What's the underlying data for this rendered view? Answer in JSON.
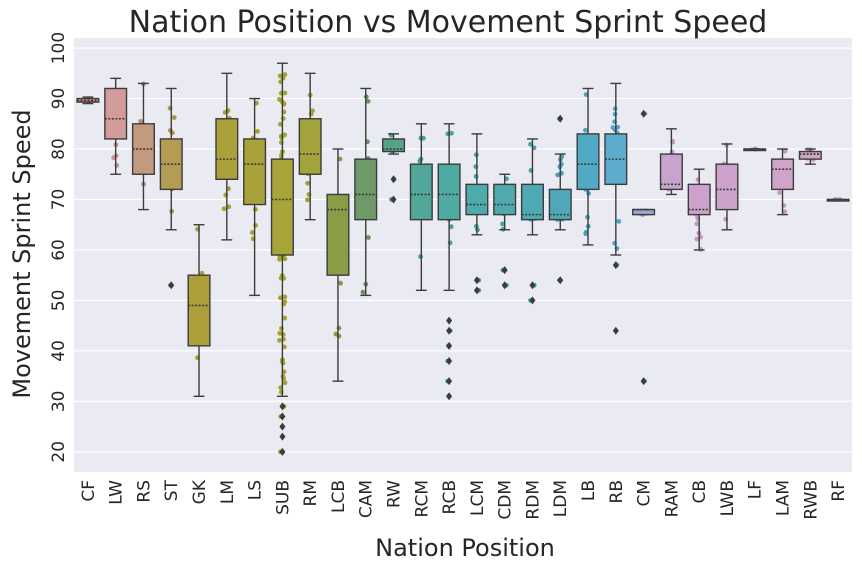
{
  "chart_data": {
    "type": "box",
    "title": "Nation Position vs Movement Sprint Speed",
    "xlabel": "Nation Position",
    "ylabel": "Movement Sprint Speed",
    "ylim": [
      16,
      102
    ],
    "yticks": [
      20,
      30,
      40,
      50,
      60,
      70,
      80,
      90,
      100
    ],
    "grid": true,
    "categories": [
      "CF",
      "LW",
      "RS",
      "ST",
      "GK",
      "LM",
      "LS",
      "SUB",
      "RM",
      "LCB",
      "CAM",
      "RW",
      "RCM",
      "RCB",
      "LCM",
      "CDM",
      "RDM",
      "LDM",
      "LB",
      "RB",
      "CM",
      "RAM",
      "CB",
      "LWB",
      "LF",
      "LAM",
      "RWB",
      "RF"
    ],
    "boxes": [
      {
        "position": "CF",
        "whislo": 89,
        "q1": 89.3,
        "med": 89.6,
        "q3": 90,
        "whishi": 90.3,
        "fliers": [],
        "box_color": "#db7f7f",
        "point_color": "#c2706f"
      },
      {
        "position": "LW",
        "whislo": 75,
        "q1": 82,
        "med": 86,
        "q3": 92,
        "whishi": 94,
        "fliers": [],
        "box_color": "#d39b9a",
        "point_color": "#c98b89"
      },
      {
        "position": "RS",
        "whislo": 68,
        "q1": 75,
        "med": 80,
        "q3": 85,
        "whishi": 93,
        "fliers": [],
        "box_color": "#c49a7e",
        "point_color": "#b58b6c"
      },
      {
        "position": "ST",
        "whislo": 64,
        "q1": 72,
        "med": 77,
        "q3": 82,
        "whishi": 92,
        "fliers": [
          53
        ],
        "box_color": "#b49c55",
        "point_color": "#a89040"
      },
      {
        "position": "GK",
        "whislo": 31,
        "q1": 41,
        "med": 49,
        "q3": 55,
        "whishi": 65,
        "fliers": [],
        "box_color": "#ac9f3a",
        "point_color": "#a69a2a"
      },
      {
        "position": "LM",
        "whislo": 62,
        "q1": 74,
        "med": 78,
        "q3": 86,
        "whishi": 95,
        "fliers": [],
        "box_color": "#aaa13a",
        "point_color": "#a59c2a"
      },
      {
        "position": "LS",
        "whislo": 51,
        "q1": 69,
        "med": 77,
        "q3": 82,
        "whishi": 90,
        "fliers": [],
        "box_color": "#a8a23a",
        "point_color": "#a39d2a"
      },
      {
        "position": "SUB",
        "whislo": 31,
        "q1": 59,
        "med": 70,
        "q3": 78,
        "whishi": 97,
        "fliers": [
          29,
          27,
          25,
          23,
          20
        ],
        "box_color": "#a7a43a",
        "point_color": "#a29f2a"
      },
      {
        "position": "RM",
        "whislo": 66,
        "q1": 75,
        "med": 79,
        "q3": 86,
        "whishi": 95,
        "fliers": [],
        "box_color": "#a3a33b",
        "point_color": "#9e9e2b"
      },
      {
        "position": "LCB",
        "whislo": 34,
        "q1": 55,
        "med": 68,
        "q3": 71,
        "whishi": 80,
        "fliers": [],
        "box_color": "#8a9c46",
        "point_color": "#829636"
      },
      {
        "position": "CAM",
        "whislo": 51,
        "q1": 66,
        "med": 71,
        "q3": 78,
        "whishi": 92,
        "fliers": [],
        "box_color": "#6e9a6a",
        "point_color": "#5f8f5c"
      },
      {
        "position": "RW",
        "whislo": 79,
        "q1": 79.5,
        "med": 80,
        "q3": 82,
        "whishi": 83,
        "fliers": [
          74,
          70
        ],
        "box_color": "#56a38a",
        "point_color": "#449881"
      },
      {
        "position": "RCM",
        "whislo": 52,
        "q1": 66,
        "med": 71,
        "q3": 77,
        "whishi": 85,
        "fliers": [],
        "box_color": "#50a79a",
        "point_color": "#3e9d90"
      },
      {
        "position": "RCB",
        "whislo": 52,
        "q1": 66,
        "med": 71,
        "q3": 77,
        "whishi": 85,
        "fliers": [
          46,
          44,
          41,
          38,
          34,
          31
        ],
        "box_color": "#4faaa2",
        "point_color": "#3da098"
      },
      {
        "position": "LCM",
        "whislo": 63,
        "q1": 67,
        "med": 69,
        "q3": 73,
        "whishi": 83,
        "fliers": [
          54,
          52
        ],
        "box_color": "#4eabab",
        "point_color": "#3ca1a1"
      },
      {
        "position": "CDM",
        "whislo": 64,
        "q1": 67,
        "med": 69,
        "q3": 73,
        "whishi": 75,
        "fliers": [
          56,
          53
        ],
        "box_color": "#4faab0",
        "point_color": "#3da0a6"
      },
      {
        "position": "RDM",
        "whislo": 63,
        "q1": 66,
        "med": 67,
        "q3": 73,
        "whishi": 82,
        "fliers": [
          53,
          50
        ],
        "box_color": "#4fa9b2",
        "point_color": "#3d9fa8"
      },
      {
        "position": "LDM",
        "whislo": 64,
        "q1": 66,
        "med": 67,
        "q3": 72,
        "whishi": 79,
        "fliers": [
          86,
          54
        ],
        "box_color": "#4fa8b8",
        "point_color": "#3d9eae"
      },
      {
        "position": "LB",
        "whislo": 61,
        "q1": 72,
        "med": 77,
        "q3": 83,
        "whishi": 92,
        "fliers": [],
        "box_color": "#50aac6",
        "point_color": "#3ea0bd"
      },
      {
        "position": "RB",
        "whislo": 59,
        "q1": 73,
        "med": 78,
        "q3": 83,
        "whishi": 93,
        "fliers": [
          57,
          44
        ],
        "box_color": "#5eaccd",
        "point_color": "#4ca2c4"
      },
      {
        "position": "CM",
        "whislo": 67,
        "q1": 67,
        "med": 68,
        "q3": 68,
        "whishi": 68,
        "fliers": [
          87,
          34
        ],
        "box_color": "#9aa6cf",
        "point_color": "#8c98c4"
      },
      {
        "position": "RAM",
        "whislo": 71,
        "q1": 72,
        "med": 73,
        "q3": 79,
        "whishi": 84,
        "fliers": [],
        "box_color": "#c8a3cd",
        "point_color": "#be95c3"
      },
      {
        "position": "CB",
        "whislo": 60,
        "q1": 67,
        "med": 68,
        "q3": 73,
        "whishi": 76,
        "fliers": [],
        "box_color": "#cca2cc",
        "point_color": "#c294c2"
      },
      {
        "position": "LWB",
        "whislo": 64,
        "q1": 68,
        "med": 72,
        "q3": 77,
        "whishi": 81,
        "fliers": [],
        "box_color": "#cda2cb",
        "point_color": "#c394c1"
      },
      {
        "position": "LF",
        "whislo": 80,
        "q1": 80,
        "med": 80,
        "q3": 80,
        "whishi": 80,
        "fliers": [],
        "box_color": "#cfa3c9",
        "point_color": "#c595bf"
      },
      {
        "position": "LAM",
        "whislo": 67,
        "q1": 72,
        "med": 76,
        "q3": 78,
        "whishi": 80,
        "fliers": [],
        "box_color": "#d0a3c8",
        "point_color": "#c695be"
      },
      {
        "position": "RWB",
        "whislo": 77,
        "q1": 78,
        "med": 79,
        "q3": 79.5,
        "whishi": 80,
        "fliers": [],
        "box_color": "#d1a4c6",
        "point_color": "#c796bc"
      },
      {
        "position": "RF",
        "whislo": 70,
        "q1": 70,
        "med": 70,
        "q3": 70,
        "whishi": 70,
        "fliers": [],
        "box_color": "#d2a5c5",
        "point_color": "#c897bb"
      }
    ]
  }
}
